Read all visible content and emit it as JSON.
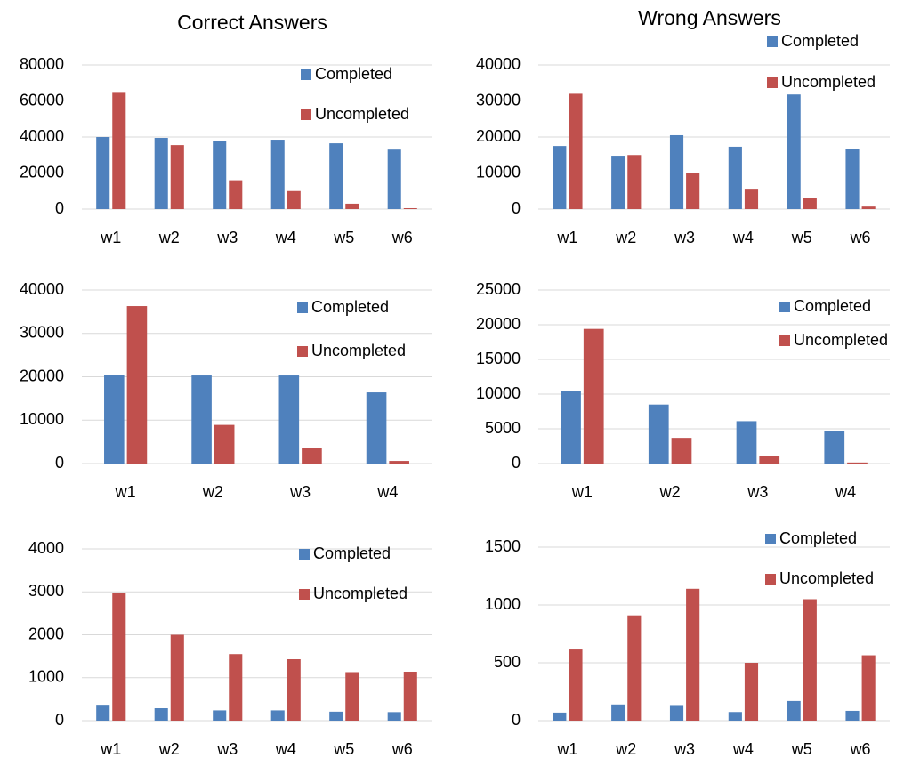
{
  "chart_data": [
    {
      "type": "bar",
      "title": "Correct Answers",
      "categories": [
        "w1",
        "w2",
        "w3",
        "w4",
        "w5",
        "w6"
      ],
      "series": [
        {
          "name": "Completed",
          "color": "#4f81bd",
          "values": [
            40000,
            39500,
            38000,
            38500,
            36500,
            33000
          ]
        },
        {
          "name": "Uncompleted",
          "color": "#c0504d",
          "values": [
            65000,
            35500,
            16000,
            10000,
            3000,
            500
          ]
        }
      ],
      "ylim": [
        0,
        80000
      ],
      "yticks": [
        0,
        20000,
        40000,
        60000,
        80000
      ],
      "grid": true,
      "legend": "upper right"
    },
    {
      "type": "bar",
      "title": "Wrong Answers",
      "categories": [
        "w1",
        "w2",
        "w3",
        "w4",
        "w5",
        "w6"
      ],
      "series": [
        {
          "name": "Completed",
          "color": "#4f81bd",
          "values": [
            17500,
            14800,
            20500,
            17300,
            31800,
            16600
          ]
        },
        {
          "name": "Uncompleted",
          "color": "#c0504d",
          "values": [
            32000,
            15000,
            10000,
            5400,
            3200,
            700
          ]
        }
      ],
      "ylim": [
        0,
        40000
      ],
      "yticks": [
        0,
        10000,
        20000,
        30000,
        40000
      ],
      "grid": true,
      "legend": "upper right"
    },
    {
      "type": "bar",
      "categories": [
        "w1",
        "w2",
        "w3",
        "w4"
      ],
      "series": [
        {
          "name": "Completed",
          "color": "#4f81bd",
          "values": [
            20500,
            20300,
            20300,
            16400
          ]
        },
        {
          "name": "Uncompleted",
          "color": "#c0504d",
          "values": [
            36300,
            8900,
            3600,
            600
          ]
        }
      ],
      "ylim": [
        0,
        40000
      ],
      "yticks": [
        0,
        10000,
        20000,
        30000,
        40000
      ],
      "grid": true,
      "legend": "upper right"
    },
    {
      "type": "bar",
      "categories": [
        "w1",
        "w2",
        "w3",
        "w4"
      ],
      "series": [
        {
          "name": "Completed",
          "color": "#4f81bd",
          "values": [
            10500,
            8500,
            6100,
            4700
          ]
        },
        {
          "name": "Uncompleted",
          "color": "#c0504d",
          "values": [
            19400,
            3700,
            1100,
            150
          ]
        }
      ],
      "ylim": [
        0,
        25000
      ],
      "yticks": [
        0,
        5000,
        10000,
        15000,
        20000,
        25000
      ],
      "grid": true,
      "legend": "upper right"
    },
    {
      "type": "bar",
      "categories": [
        "w1",
        "w2",
        "w3",
        "w4",
        "w5",
        "w6"
      ],
      "series": [
        {
          "name": "Completed",
          "color": "#4f81bd",
          "values": [
            370,
            290,
            240,
            240,
            210,
            200
          ]
        },
        {
          "name": "Uncompleted",
          "color": "#c0504d",
          "values": [
            2980,
            2000,
            1550,
            1430,
            1130,
            1140
          ]
        }
      ],
      "ylim": [
        0,
        4000
      ],
      "yticks": [
        0,
        1000,
        2000,
        3000,
        4000
      ],
      "grid": true,
      "legend": "upper right"
    },
    {
      "type": "bar",
      "categories": [
        "w1",
        "w2",
        "w3",
        "w4",
        "w5",
        "w6"
      ],
      "series": [
        {
          "name": "Completed",
          "color": "#4f81bd",
          "values": [
            70,
            140,
            135,
            75,
            170,
            85
          ]
        },
        {
          "name": "Uncompleted",
          "color": "#c0504d",
          "values": [
            615,
            910,
            1140,
            500,
            1050,
            565
          ]
        }
      ],
      "ylim": [
        0,
        1500
      ],
      "yticks": [
        0,
        500,
        1000,
        1500
      ],
      "grid": true,
      "legend": "upper right"
    }
  ]
}
